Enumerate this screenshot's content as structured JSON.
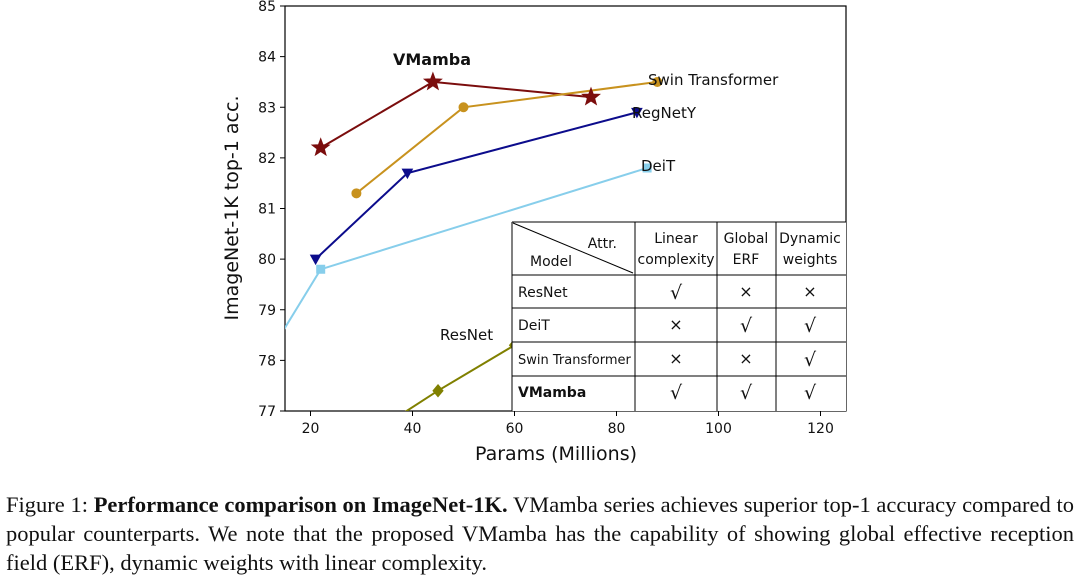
{
  "chart_data": {
    "type": "line",
    "xlabel": "Params (Millions)",
    "ylabel": "ImageNet-1K top-1 acc.",
    "xlim": [
      15,
      125
    ],
    "ylim": [
      77,
      85
    ],
    "xticks": [
      20,
      40,
      60,
      80,
      100,
      120
    ],
    "yticks": [
      77,
      78,
      79,
      80,
      81,
      82,
      83,
      84,
      85
    ],
    "grid": false,
    "series": [
      {
        "name": "VMamba",
        "color": "#7b0d0d",
        "marker": "star",
        "bold": true,
        "x": [
          22,
          44,
          75
        ],
        "y": [
          82.2,
          83.5,
          83.2
        ]
      },
      {
        "name": "Swin Transformer",
        "color": "#c8921e",
        "marker": "circle",
        "x": [
          29,
          50,
          88
        ],
        "y": [
          81.3,
          83.0,
          83.5
        ]
      },
      {
        "name": "RegNetY",
        "color": "#0c0c8c",
        "marker": "triangle-down",
        "x": [
          21,
          39,
          84
        ],
        "y": [
          80.0,
          81.7,
          82.9
        ]
      },
      {
        "name": "DeiT",
        "color": "#87ceeb",
        "marker": "square",
        "x": [
          5,
          22,
          86
        ],
        "y": [
          77.0,
          79.8,
          81.8
        ]
      },
      {
        "name": "ResNet",
        "color": "#808000",
        "marker": "diamond",
        "x": [
          25,
          45,
          60
        ],
        "y": [
          76.1,
          77.4,
          78.3
        ]
      }
    ],
    "table": {
      "corner_top": "Attr.",
      "corner_bottom": "Model",
      "columns": [
        {
          "line1": "Linear",
          "line2": "complexity"
        },
        {
          "line1": "Global",
          "line2": "ERF"
        },
        {
          "line1": "Dynamic",
          "line2": "weights"
        }
      ],
      "rows": [
        {
          "model": "ResNet",
          "bold": false,
          "cells": [
            "√",
            "×",
            "×"
          ]
        },
        {
          "model": "DeiT",
          "bold": false,
          "cells": [
            "×",
            "√",
            "√"
          ]
        },
        {
          "model": "Swin Transformer",
          "bold": false,
          "cells": [
            "×",
            "×",
            "√"
          ]
        },
        {
          "model": "VMamba",
          "bold": true,
          "cells": [
            "√",
            "√",
            "√"
          ]
        }
      ],
      "check_color": "#2e8b2e",
      "cross_color": "#d62020"
    }
  },
  "caption": {
    "prefix": "Figure 1: ",
    "bold": "Performance comparison on ImageNet-1K.",
    "text": " VMamba series achieves superior top-1 accuracy compared to popular counterparts. We note that the proposed VMamba has the capability of showing global effective reception field (ERF), dynamic weights with linear complexity."
  }
}
